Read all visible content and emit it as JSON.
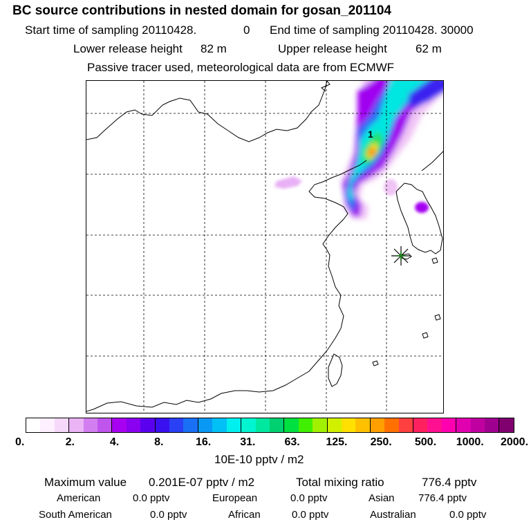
{
  "header": {
    "title": "BC  source contributions in nested domain for gosan_201104",
    "start_label": "Start time of sampling 20110428.",
    "start_time": "0",
    "end_label": "End time of sampling 20110428. 30000",
    "lower_label": "Lower release height",
    "lower_value": "82 m",
    "upper_label": "Upper release height",
    "upper_value": "62 m",
    "tracer_note": "Passive tracer used, meteorological data are from ECMWF"
  },
  "map": {
    "contour_label": "1",
    "release_site_icon": "star-burst-icon",
    "colors": {
      "coast": "#000000",
      "grid": "#000000",
      "marker": "#228b22"
    }
  },
  "legend": {
    "ticks": [
      "0.",
      "2.",
      "4.",
      "8.",
      "16.",
      "31.",
      "63.",
      "125.",
      "250.",
      "500.",
      "1000.",
      "2000."
    ],
    "units": "10E-10 pptv / m2",
    "colors": [
      "#ffffff",
      "#fff0ff",
      "#f5d8fa",
      "#eab4f5",
      "#d27ef0",
      "#c055ee",
      "#a800f0",
      "#8a00f0",
      "#5a00ee",
      "#3a10f0",
      "#2a40f5",
      "#1a70f5",
      "#0a98f5",
      "#00c0f5",
      "#00f0f0",
      "#00f5d0",
      "#00e8a0",
      "#00d070",
      "#00e040",
      "#40f000",
      "#a0f000",
      "#d0f000",
      "#ffe000",
      "#ffc000",
      "#ffa000",
      "#ff7000",
      "#ff4040",
      "#ff2060",
      "#ff1090",
      "#ff00b0",
      "#e000b0",
      "#c000a0",
      "#a00090",
      "#800070"
    ]
  },
  "summary": {
    "max_label": "Maximum value",
    "max_value": "0.201E-07 pptv / m2",
    "total_label": "Total mixing ratio",
    "total_value": "776.4 pptv",
    "regions": [
      {
        "name": "American",
        "value": "0.0 pptv"
      },
      {
        "name": "European",
        "value": "0.0 pptv"
      },
      {
        "name": "Asian",
        "value": "776.4 pptv"
      },
      {
        "name": "South American",
        "value": "0.0 pptv"
      },
      {
        "name": "African",
        "value": "0.0 pptv"
      },
      {
        "name": "Australian",
        "value": "0.0 pptv"
      }
    ]
  }
}
